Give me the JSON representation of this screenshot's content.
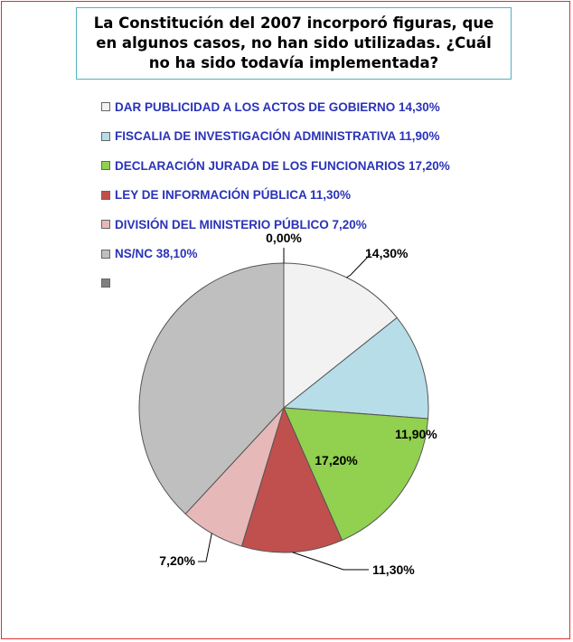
{
  "chart_data": {
    "type": "pie",
    "title": "La Constitución del 2007 incorporó figuras, que en algunos casos, no han sido utilizadas. ¿Cuál no ha sido todavía implementada?",
    "slices": [
      {
        "legend": "DAR PUBLICIDAD A LOS ACTOS DE GOBIERNO 14,30%",
        "value": 14.3,
        "label": "14,30%",
        "color": "#f2f2f2"
      },
      {
        "legend": "FISCALIA DE INVESTIGACIÓN ADMINISTRATIVA 11,90%",
        "value": 11.9,
        "label": "11,90%",
        "color": "#b7dde8"
      },
      {
        "legend": "DECLARACIÓN JURADA DE LOS FUNCIONARIOS 17,20%",
        "value": 17.2,
        "label": "17,20%",
        "color": "#92d050"
      },
      {
        "legend": "LEY DE INFORMACIÓN PÚBLICA 11,30%",
        "value": 11.3,
        "label": "11,30%",
        "color": "#c0504d"
      },
      {
        "legend": "DIVISIÓN DEL MINISTERIO PÚBLICO 7,20%",
        "value": 7.2,
        "label": "7,20%",
        "color": "#e6b9b8"
      },
      {
        "legend": "NS/NC 38,10%",
        "value": 38.1,
        "label": "",
        "color": "#bfbfbf"
      },
      {
        "legend": "",
        "value": 0.0,
        "label": "0,00%",
        "color": "#808080"
      }
    ],
    "legend_position": "top-left"
  }
}
